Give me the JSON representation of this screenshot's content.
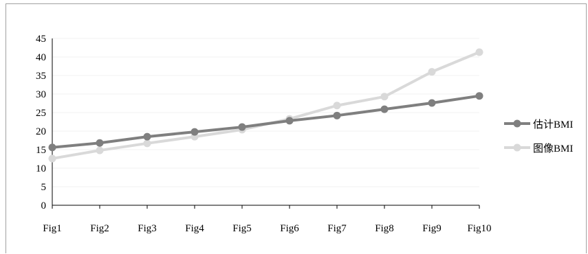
{
  "chart_data": {
    "type": "line",
    "categories": [
      "Fig1",
      "Fig2",
      "Fig3",
      "Fig4",
      "Fig5",
      "Fig6",
      "Fig7",
      "Fig8",
      "Fig9",
      "Fig10"
    ],
    "ylim": [
      0,
      45
    ],
    "yticks": [
      0,
      5,
      10,
      15,
      20,
      25,
      30,
      35,
      40,
      45
    ],
    "grid": true,
    "legend_position": "right",
    "series": [
      {
        "name": "估计BMI",
        "color": "#7f7f7f",
        "values": [
          15.6,
          16.8,
          18.5,
          19.8,
          21.1,
          22.8,
          24.2,
          25.9,
          27.6,
          29.5
        ]
      },
      {
        "name": "图像BMI",
        "color": "#d9d9d9",
        "values": [
          12.6,
          14.8,
          16.7,
          18.5,
          20.4,
          23.3,
          26.9,
          29.3,
          36.0,
          41.3
        ]
      }
    ]
  }
}
